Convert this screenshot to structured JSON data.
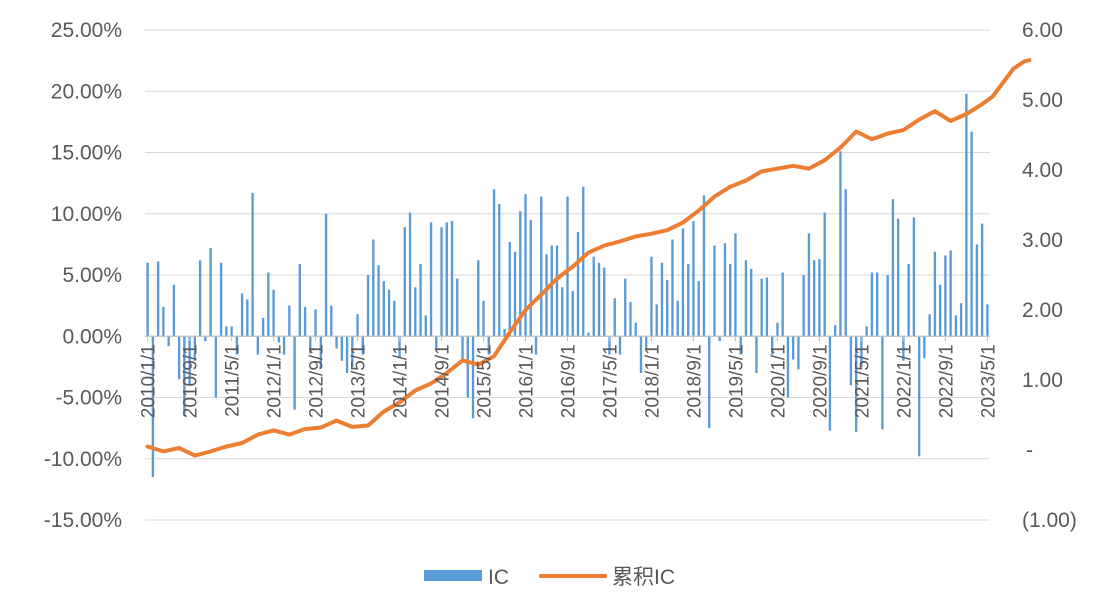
{
  "chart_data": {
    "type": "bar+line",
    "title": "",
    "legend": {
      "placement": "bottom"
    },
    "grid": "horizontal",
    "colors": {
      "IC": "#5b9bd5",
      "累积IC": "#ed7d31",
      "grid": "#d9d9d9",
      "text": "#595959"
    },
    "y_left": {
      "lim": [
        -15,
        25
      ],
      "ticks": [
        25,
        20,
        15,
        10,
        5,
        0,
        -5,
        -10,
        -15
      ],
      "tick_labels": [
        "25.00%",
        "20.00%",
        "15.00%",
        "10.00%",
        "5.00%",
        "0.00%",
        "-5.00%",
        "-10.00%",
        "-15.00%"
      ]
    },
    "y_right": {
      "lim": [
        -1,
        6
      ],
      "ticks": [
        6,
        5,
        4,
        3,
        2,
        1,
        0,
        -1
      ],
      "tick_labels": [
        "6.00",
        "5.00",
        "4.00",
        "3.00",
        "2.00",
        "1.00",
        "-",
        "(1.00)"
      ]
    },
    "x": {
      "start": "2010-01",
      "tick_labels": [
        "2010/1/1",
        "2010/9/1",
        "2011/5/1",
        "2012/1/1",
        "2012/9/1",
        "2013/5/1",
        "2014/1/1",
        "2014/9/1",
        "2015/5/1",
        "2016/1/1",
        "2016/9/1",
        "2017/5/1",
        "2018/1/1",
        "2018/9/1",
        "2019/5/1",
        "2020/1/1",
        "2020/9/1",
        "2021/5/1",
        "2022/1/1",
        "2022/9/1",
        "2023/5/1"
      ]
    },
    "series": [
      {
        "name": "IC",
        "kind": "bar",
        "axis": "left",
        "values": [
          6.0,
          -11.5,
          6.1,
          2.4,
          -0.8,
          4.2,
          -3.5,
          -6.5,
          -4.0,
          -2.0,
          6.2,
          -0.4,
          7.2,
          -5.0,
          6.0,
          0.8,
          0.8,
          -1.5,
          3.5,
          3.0,
          11.7,
          -1.5,
          1.5,
          5.2,
          3.8,
          -0.5,
          -1.5,
          2.5,
          -6.0,
          5.9,
          2.4,
          -1.4,
          2.2,
          -2.6,
          10.0,
          2.5,
          -1.0,
          -2.0,
          -3.0,
          -2.5,
          1.8,
          -1.5,
          5.0,
          7.9,
          5.8,
          4.5,
          3.8,
          2.9,
          -1.8,
          8.9,
          10.1,
          4.0,
          5.9,
          1.7,
          9.3,
          -1.0,
          8.9,
          9.3,
          9.4,
          4.7,
          -2.0,
          -5.0,
          -6.7,
          6.2,
          2.9,
          -1.5,
          12.0,
          10.8,
          0.6,
          7.7,
          6.9,
          10.2,
          11.6,
          9.5,
          -1.5,
          11.4,
          6.7,
          7.4,
          7.4,
          4.0,
          11.4,
          3.7,
          8.5,
          12.2,
          0.3,
          6.5,
          6.0,
          5.6,
          -1.5,
          3.1,
          -1.5,
          4.7,
          2.8,
          1.1,
          -3.0,
          -1.0,
          6.5,
          2.6,
          6.0,
          4.6,
          7.9,
          2.9,
          8.8,
          5.9,
          9.4,
          4.5,
          11.5,
          -7.5,
          7.4,
          -0.4,
          7.6,
          5.9,
          8.4,
          -1.5,
          6.2,
          5.5,
          -3.0,
          4.7,
          4.8,
          -1.5,
          1.1,
          5.2,
          -5.0,
          -1.9,
          -2.7,
          5.0,
          8.4,
          6.2,
          6.3,
          10.1,
          -7.7,
          0.9,
          15.1,
          12.0,
          -4.0,
          -7.8,
          -2.5,
          0.8,
          5.2,
          5.2,
          -7.6,
          5.0,
          11.2,
          9.6,
          -2.0,
          5.9,
          9.7,
          -9.8,
          -1.8,
          1.8,
          6.9,
          4.2,
          6.6,
          7.0,
          1.7,
          2.7,
          19.8,
          16.7,
          7.5,
          9.2,
          2.6
        ]
      },
      {
        "name": "累积IC",
        "kind": "line",
        "axis": "right",
        "points": [
          [
            0,
            0.05
          ],
          [
            3,
            -0.02
          ],
          [
            6,
            0.03
          ],
          [
            9,
            -0.08
          ],
          [
            12,
            -0.02
          ],
          [
            15,
            0.05
          ],
          [
            18,
            0.1
          ],
          [
            21,
            0.22
          ],
          [
            24,
            0.28
          ],
          [
            27,
            0.22
          ],
          [
            30,
            0.3
          ],
          [
            33,
            0.32
          ],
          [
            36,
            0.42
          ],
          [
            39,
            0.33
          ],
          [
            42,
            0.35
          ],
          [
            45,
            0.55
          ],
          [
            48,
            0.68
          ],
          [
            51,
            0.85
          ],
          [
            54,
            0.95
          ],
          [
            57,
            1.1
          ],
          [
            60,
            1.28
          ],
          [
            63,
            1.22
          ],
          [
            66,
            1.34
          ],
          [
            69,
            1.68
          ],
          [
            72,
            2.0
          ],
          [
            75,
            2.22
          ],
          [
            78,
            2.45
          ],
          [
            81,
            2.62
          ],
          [
            84,
            2.82
          ],
          [
            87,
            2.92
          ],
          [
            90,
            2.98
          ],
          [
            93,
            3.05
          ],
          [
            96,
            3.09
          ],
          [
            99,
            3.14
          ],
          [
            102,
            3.25
          ],
          [
            105,
            3.42
          ],
          [
            108,
            3.62
          ],
          [
            111,
            3.76
          ],
          [
            114,
            3.85
          ],
          [
            117,
            3.98
          ],
          [
            120,
            4.02
          ],
          [
            123,
            4.06
          ],
          [
            126,
            4.02
          ],
          [
            129,
            4.14
          ],
          [
            132,
            4.32
          ],
          [
            135,
            4.55
          ],
          [
            138,
            4.44
          ],
          [
            141,
            4.52
          ],
          [
            144,
            4.57
          ],
          [
            147,
            4.72
          ],
          [
            150,
            4.84
          ],
          [
            153,
            4.7
          ],
          [
            156,
            4.8
          ],
          [
            159,
            4.94
          ],
          [
            161,
            5.05
          ],
          [
            163,
            5.25
          ],
          [
            165,
            5.45
          ],
          [
            167,
            5.55
          ],
          [
            168,
            5.57
          ]
        ]
      }
    ]
  },
  "legend": {
    "items": [
      {
        "label": "IC",
        "color": "#5b9bd5",
        "kind": "bar"
      },
      {
        "label": "累积IC",
        "color": "#ed7d31",
        "kind": "line"
      }
    ]
  }
}
